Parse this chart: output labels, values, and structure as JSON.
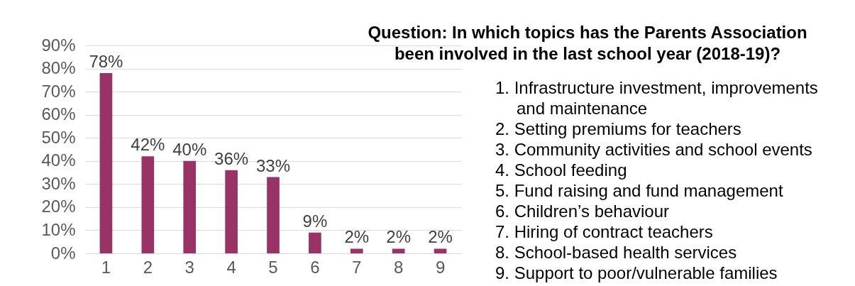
{
  "chart_data": {
    "type": "bar",
    "title": "Question: In which topics has the Parents Association been involved in the last school year (2018-19)?",
    "categories": [
      "1",
      "2",
      "3",
      "4",
      "5",
      "6",
      "7",
      "8",
      "9"
    ],
    "values": [
      78,
      42,
      40,
      36,
      33,
      9,
      2,
      2,
      2
    ],
    "value_labels": [
      "78%",
      "42%",
      "40%",
      "36%",
      "33%",
      "9%",
      "2%",
      "2%",
      "2%"
    ],
    "color": "#993366",
    "ylim": [
      0,
      90
    ],
    "yticks": [
      {
        "value": 0,
        "label": "0%"
      },
      {
        "value": 10,
        "label": "10%"
      },
      {
        "value": 20,
        "label": "20%"
      },
      {
        "value": 30,
        "label": "30%"
      },
      {
        "value": 40,
        "label": "40%"
      },
      {
        "value": 50,
        "label": "50%"
      },
      {
        "value": 60,
        "label": "60%"
      },
      {
        "value": 70,
        "label": "70%"
      },
      {
        "value": 80,
        "label": "80%"
      },
      {
        "value": 90,
        "label": "90%"
      }
    ],
    "grid": "y",
    "annotations": [
      "1. Infrastructure investment, improvements and maintenance",
      "2. Setting premiums for teachers",
      "3. Community activities and school events",
      "4. School feeding",
      "5. Fund raising and fund management",
      "6. Children’s behaviour",
      "7. Hiring of contract teachers",
      "8. School-based health services",
      "9. Support to poor/vulnerable families"
    ]
  }
}
